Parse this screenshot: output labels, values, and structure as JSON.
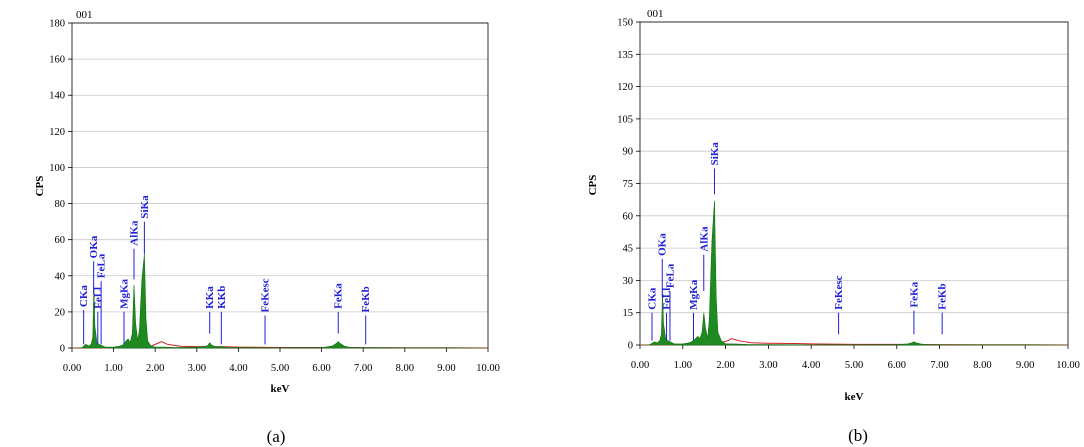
{
  "chart_data": [
    {
      "type": "area",
      "panel_label": "001",
      "caption": "(a)",
      "xlabel": "keV",
      "ylabel": "CPS",
      "xlim": [
        0,
        10
      ],
      "ylim": [
        0,
        180
      ],
      "xticks": [
        "0.00",
        "1.00",
        "2.00",
        "3.00",
        "4.00",
        "5.00",
        "6.00",
        "7.00",
        "8.00",
        "9.00",
        "10.00"
      ],
      "yticks": [
        "0",
        "20",
        "40",
        "60",
        "80",
        "100",
        "120",
        "140",
        "160",
        "180"
      ],
      "grid": true,
      "spectrum": {
        "x": [
          0,
          0.2,
          0.26,
          0.3,
          0.34,
          0.4,
          0.46,
          0.5,
          0.525,
          0.55,
          0.6,
          0.65,
          0.7,
          0.75,
          0.8,
          1.0,
          1.15,
          1.2,
          1.25,
          1.3,
          1.35,
          1.4,
          1.45,
          1.49,
          1.53,
          1.58,
          1.62,
          1.68,
          1.74,
          1.78,
          1.82,
          1.9,
          2.0,
          2.2,
          2.5,
          3.0,
          3.2,
          3.27,
          3.31,
          3.36,
          3.42,
          3.5,
          3.59,
          3.66,
          3.75,
          4.0,
          5.0,
          6.0,
          6.25,
          6.35,
          6.4,
          6.45,
          6.55,
          6.7,
          7.0,
          7.06,
          7.15,
          8.0,
          9.0,
          10.0
        ],
        "y": [
          0,
          0,
          0.5,
          1.5,
          2,
          1,
          2,
          6,
          34,
          12,
          3,
          2,
          1.5,
          1,
          0.5,
          0.5,
          1,
          1.5,
          2,
          4,
          5,
          3,
          8,
          35,
          14,
          4,
          10,
          38,
          52,
          16,
          4,
          1,
          0.5,
          0.5,
          0.3,
          0.5,
          0.8,
          1.5,
          3,
          1.5,
          1,
          0.5,
          0.8,
          0.6,
          0.3,
          0.2,
          0.1,
          0.3,
          1,
          2.5,
          3.5,
          2.5,
          1,
          0.3,
          0.2,
          0.3,
          0.2,
          0.1,
          0.1,
          0
        ]
      },
      "background_line": {
        "x": [
          0,
          0.8,
          1.2,
          1.9,
          2.05,
          2.15,
          2.3,
          2.6,
          3.0,
          3.6,
          4.0,
          5.0,
          6.0,
          7.0,
          8.0,
          9.0,
          10.0
        ],
        "y": [
          0,
          0,
          0.5,
          1,
          2.5,
          3.5,
          2,
          1,
          0.8,
          0.8,
          0.5,
          0.3,
          0.3,
          0.2,
          0.1,
          0.1,
          0
        ]
      },
      "markers": [
        {
          "label": "CKa",
          "energy": 0.28,
          "from": 2,
          "to": 21
        },
        {
          "label": "OKa",
          "energy": 0.52,
          "from": 30,
          "to": 48
        },
        {
          "label": "FeLl",
          "energy": 0.62,
          "from": 2,
          "to": 20
        },
        {
          "label": "FeLa",
          "energy": 0.7,
          "from": 2,
          "to": 37
        },
        {
          "label": "MgKa",
          "energy": 1.25,
          "from": 2,
          "to": 20
        },
        {
          "label": "AlKa",
          "energy": 1.49,
          "from": 38,
          "to": 55
        },
        {
          "label": "SiKa",
          "energy": 1.74,
          "from": 52,
          "to": 70
        },
        {
          "label": "KKa",
          "energy": 3.31,
          "from": 8,
          "to": 20
        },
        {
          "label": "KKb",
          "energy": 3.59,
          "from": 2,
          "to": 20
        },
        {
          "label": "FeKesc",
          "energy": 4.64,
          "from": 2,
          "to": 18
        },
        {
          "label": "FeKa",
          "energy": 6.4,
          "from": 8,
          "to": 20
        },
        {
          "label": "FeKb",
          "energy": 7.06,
          "from": 2,
          "to": 18
        }
      ]
    },
    {
      "type": "area",
      "panel_label": "001",
      "caption": "(b)",
      "xlabel": "keV",
      "ylabel": "CPS",
      "xlim": [
        0,
        10
      ],
      "ylim": [
        0,
        150
      ],
      "xticks": [
        "0.00",
        "1.00",
        "2.00",
        "3.00",
        "4.00",
        "5.00",
        "6.00",
        "7.00",
        "8.00",
        "9.00",
        "10.00"
      ],
      "yticks": [
        "0",
        "15",
        "30",
        "45",
        "60",
        "75",
        "90",
        "105",
        "120",
        "135",
        "150"
      ],
      "grid": true,
      "spectrum": {
        "x": [
          0,
          0.2,
          0.26,
          0.3,
          0.34,
          0.4,
          0.46,
          0.5,
          0.525,
          0.55,
          0.6,
          0.65,
          0.7,
          0.75,
          0.8,
          1.0,
          1.15,
          1.2,
          1.25,
          1.3,
          1.35,
          1.4,
          1.45,
          1.49,
          1.53,
          1.58,
          1.62,
          1.68,
          1.74,
          1.78,
          1.82,
          1.9,
          2.0,
          2.2,
          2.5,
          3.0,
          4.0,
          5.0,
          6.0,
          6.25,
          6.35,
          6.4,
          6.45,
          6.55,
          6.7,
          7.0,
          8.0,
          9.0,
          10.0
        ],
        "y": [
          0,
          0,
          0.5,
          1,
          1.5,
          1,
          2,
          5,
          24,
          10,
          3,
          2,
          1.5,
          1,
          0.5,
          0.5,
          1,
          1.5,
          2,
          3,
          4,
          3,
          6,
          15,
          8,
          3,
          12,
          48,
          67,
          22,
          6,
          2,
          0.5,
          0.5,
          0.3,
          0.2,
          0.1,
          0.1,
          0.2,
          0.5,
          1,
          1.5,
          1,
          0.5,
          0.2,
          0.1,
          0.1,
          0.1,
          0
        ]
      },
      "background_line": {
        "x": [
          0,
          0.8,
          1.2,
          1.9,
          2.05,
          2.15,
          2.3,
          2.6,
          3.0,
          3.6,
          4.0,
          5.0,
          6.0,
          7.0,
          8.0,
          9.0,
          10.0
        ],
        "y": [
          0,
          0,
          0.5,
          1,
          2,
          3,
          2,
          1,
          0.8,
          0.7,
          0.5,
          0.3,
          0.3,
          0.2,
          0.1,
          0.1,
          0
        ]
      },
      "markers": [
        {
          "label": "CKa",
          "energy": 0.28,
          "from": 2,
          "to": 15
        },
        {
          "label": "OKa",
          "energy": 0.52,
          "from": 22,
          "to": 40
        },
        {
          "label": "FeLl",
          "energy": 0.62,
          "from": 2,
          "to": 15
        },
        {
          "label": "FeLa",
          "energy": 0.7,
          "from": 2,
          "to": 25
        },
        {
          "label": "MgKa",
          "energy": 1.25,
          "from": 2,
          "to": 15
        },
        {
          "label": "AlKa",
          "energy": 1.49,
          "from": 25,
          "to": 42
        },
        {
          "label": "SiKa",
          "energy": 1.74,
          "from": 70,
          "to": 82
        },
        {
          "label": "FeKesc",
          "energy": 4.64,
          "from": 5,
          "to": 15
        },
        {
          "label": "FeKa",
          "energy": 6.4,
          "from": 5,
          "to": 16
        },
        {
          "label": "FeKb",
          "energy": 7.06,
          "from": 5,
          "to": 15
        }
      ]
    }
  ]
}
